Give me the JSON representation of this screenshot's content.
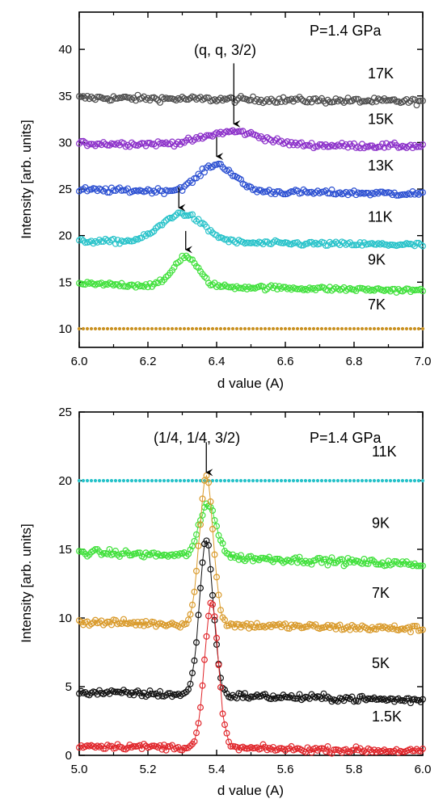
{
  "chart_data": [
    {
      "type": "scatter",
      "annotation": "P=1.4 GPa",
      "peak_label": "(q, q, 3/2)",
      "xlabel": "d value (A)",
      "ylabel": "Intensity [arb. units]",
      "xlim": [
        6.0,
        7.0
      ],
      "ylim": [
        8,
        44
      ],
      "x_ticks": [
        "6.0",
        "6.2",
        "6.4",
        "6.6",
        "6.8",
        "7.0"
      ],
      "y_ticks": [
        "10",
        "15",
        "20",
        "25",
        "30",
        "35",
        "40"
      ],
      "grid": false,
      "series": [
        {
          "name": "17K",
          "color": "#4d4d4d",
          "baseline": 34.8,
          "peak_x": null,
          "peak_height": 0,
          "noise": 0.45,
          "slope": -0.4,
          "marker": "circle"
        },
        {
          "name": "15K",
          "color": "#8b2fc9",
          "baseline": 29.9,
          "peak_x": 6.45,
          "peak_height": 1.4,
          "peak_width": 0.08,
          "noise": 0.4,
          "slope": -0.3,
          "marker": "circle"
        },
        {
          "name": "13K",
          "color": "#2b4fd1",
          "baseline": 24.9,
          "peak_x": 6.4,
          "peak_height": 2.9,
          "peak_width": 0.05,
          "noise": 0.4,
          "slope": -0.4,
          "marker": "circle"
        },
        {
          "name": "11K",
          "color": "#26c2c9",
          "baseline": 19.4,
          "peak_x": 6.3,
          "peak_height": 3.1,
          "peak_width": 0.06,
          "noise": 0.35,
          "slope": -0.4,
          "marker": "circle"
        },
        {
          "name": "9K",
          "color": "#3fe03a",
          "baseline": 14.8,
          "peak_x": 6.31,
          "peak_height": 3.2,
          "peak_width": 0.035,
          "noise": 0.35,
          "slope": -0.7,
          "marker": "circle"
        },
        {
          "name": "7K",
          "color": "#c9901f",
          "baseline": 10.0,
          "peak_x": null,
          "peak_height": 0,
          "noise": 0,
          "slope": 0,
          "marker": "dot"
        }
      ],
      "arrows": [
        {
          "x": 6.45,
          "y_from": 38.5,
          "y_to": 32.0
        },
        {
          "x": 6.4,
          "y_from": 30.6,
          "y_to": 28.5
        },
        {
          "x": 6.29,
          "y_from": 25.2,
          "y_to": 23.0
        },
        {
          "x": 6.31,
          "y_from": 20.5,
          "y_to": 18.5
        }
      ]
    },
    {
      "type": "line",
      "annotation": "P=1.4 GPa",
      "peak_label": "(1/4, 1/4, 3/2)",
      "xlabel": "d value (A)",
      "ylabel": "Intensity [arb. units]",
      "xlim": [
        5.0,
        6.0
      ],
      "ylim": [
        0,
        25
      ],
      "x_ticks": [
        "5.0",
        "5.2",
        "5.4",
        "5.6",
        "5.8",
        "6.0"
      ],
      "y_ticks": [
        "0",
        "5",
        "10",
        "15",
        "20",
        "25"
      ],
      "grid": false,
      "series": [
        {
          "name": "11K",
          "color": "#26c2c9",
          "baseline": 20.0,
          "peak_x": null,
          "peak_height": 0,
          "noise": 0,
          "slope": 0,
          "marker": "dot"
        },
        {
          "name": "9K",
          "color": "#3fe03a",
          "baseline": 14.8,
          "peak_x": 5.375,
          "peak_height": 3.8,
          "peak_width": 0.025,
          "noise": 0.35,
          "slope": -0.9,
          "marker": "circle"
        },
        {
          "name": "7K",
          "color": "#d99a2b",
          "baseline": 9.7,
          "peak_x": 5.37,
          "peak_height": 10.8,
          "peak_width": 0.02,
          "noise": 0.35,
          "slope": -0.5,
          "marker": "circle"
        },
        {
          "name": "5K",
          "color": "#111111",
          "baseline": 4.6,
          "peak_x": 5.37,
          "peak_height": 11.3,
          "peak_width": 0.02,
          "noise": 0.35,
          "slope": -0.6,
          "marker": "circle"
        },
        {
          "name": "1.5K",
          "color": "#e0262b",
          "baseline": 0.7,
          "peak_x": 5.385,
          "peak_height": 10.5,
          "peak_width": 0.02,
          "noise": 0.3,
          "slope": -0.4,
          "marker": "circle"
        }
      ],
      "arrows": [
        {
          "x": 5.37,
          "y_from": 22.8,
          "y_to": 20.6
        }
      ]
    }
  ]
}
